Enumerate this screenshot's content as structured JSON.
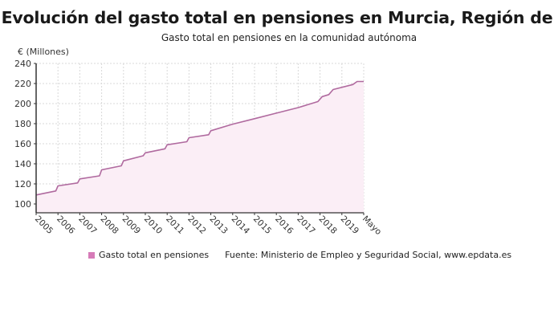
{
  "header": {
    "title": "Evolución del gasto total en pensiones en Murcia, Región de",
    "subtitle": "Gasto total en pensiones en la comunidad autónoma"
  },
  "legend": {
    "series_label": "Gasto total en pensiones",
    "source": "Fuente: Ministerio de Empleo y Seguridad Social, www.epdata.es"
  },
  "colors": {
    "line": "#b06a9f",
    "fill": "#fbeef6",
    "swatch": "#d67bb8",
    "grid": "#d8d8d8",
    "axis": "#333333"
  },
  "chart_data": {
    "type": "area",
    "title": "Evolución del gasto total en pensiones en Murcia, Región de",
    "subtitle": "Gasto total en pensiones en la comunidad autónoma",
    "xlabel": "",
    "ylabel": "€ (Millones)",
    "ylim": [
      90,
      240
    ],
    "yticks": [
      100,
      120,
      140,
      160,
      180,
      200,
      220,
      240
    ],
    "xticks": [
      "2005",
      "2006",
      "2007",
      "2008",
      "2009",
      "2010",
      "2011",
      "2012",
      "2013",
      "2014",
      "2015",
      "2016",
      "2017",
      "2018",
      "2019",
      "Mayo"
    ],
    "grid": true,
    "legend_position": "bottom",
    "series": [
      {
        "name": "Gasto total en pensiones",
        "x": [
          2005.0,
          2005.9,
          2006.0,
          2006.9,
          2007.0,
          2007.9,
          2008.0,
          2008.9,
          2009.0,
          2009.9,
          2010.0,
          2010.9,
          2011.0,
          2011.9,
          2012.0,
          2012.9,
          2013.0,
          2014.0,
          2015.0,
          2016.0,
          2017.0,
          2017.9,
          2018.1,
          2018.4,
          2018.6,
          2019.5,
          2019.7,
          2020.0
        ],
        "values": [
          109,
          113,
          118,
          121,
          125,
          128,
          134,
          138,
          143,
          148,
          151,
          155,
          159,
          162,
          166,
          169,
          173,
          179.5,
          185,
          190.5,
          196,
          202,
          207,
          209,
          214,
          219,
          222,
          222
        ]
      }
    ]
  }
}
